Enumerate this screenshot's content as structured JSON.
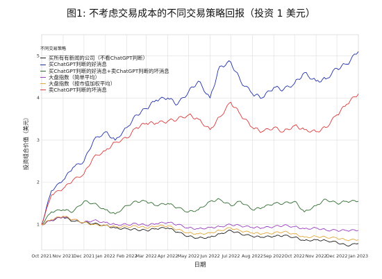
{
  "chart_data": {
    "type": "line",
    "title": "图1:  不考虑交易成本的不同交易策略回报（投资 1 美元）",
    "xlabel": "日期",
    "ylabel": "投资组合价值（美元）",
    "x_ticks": [
      "Oct 2021",
      "Nov 2021",
      "Dec 2021",
      "Jan 2022",
      "Feb 2022",
      "Mar 2022",
      "Apr 2022",
      "May 2022",
      "Jun 2022",
      "Jul 2022",
      "Aug 2022",
      "Sep 2022",
      "Oct 2022",
      "Nov 2022",
      "Dec 2022",
      "Jan 2023"
    ],
    "y_ticks": [
      "1",
      "2",
      "3",
      "4",
      "5"
    ],
    "ylim": [
      0.4,
      5.5
    ],
    "grid": true,
    "legend_title": "不同交易策略",
    "legend_position": "top-left",
    "dates": [
      "2021-10-01",
      "2021-10-15",
      "2021-11-01",
      "2021-11-15",
      "2021-12-01",
      "2021-12-15",
      "2022-01-01",
      "2022-01-15",
      "2022-02-01",
      "2022-02-15",
      "2022-03-01",
      "2022-03-15",
      "2022-04-01",
      "2022-04-15",
      "2022-05-01",
      "2022-05-15",
      "2022-06-01",
      "2022-06-15",
      "2022-07-01",
      "2022-07-15",
      "2022-08-01",
      "2022-08-15",
      "2022-09-01",
      "2022-09-15",
      "2022-10-01",
      "2022-10-15",
      "2022-11-01",
      "2022-11-15",
      "2022-12-01",
      "2022-12-15",
      "2023-01-01"
    ],
    "series": [
      {
        "name": "买所有有新闻的公司（不看ChatGPT判断）",
        "color": "#1a1a1a",
        "values": [
          1.0,
          1.1,
          1.18,
          1.08,
          1.05,
          1.02,
          0.98,
          0.92,
          0.9,
          0.88,
          0.86,
          0.9,
          0.92,
          0.82,
          0.72,
          0.68,
          0.7,
          0.78,
          0.86,
          0.78,
          0.72,
          0.7,
          0.72,
          0.74,
          0.7,
          0.62,
          0.64,
          0.62,
          0.58,
          0.5,
          0.55
        ]
      },
      {
        "name": "买ChatGPT判断的好消息",
        "color": "#1f2fa8",
        "values": [
          1.0,
          1.8,
          2.05,
          2.35,
          2.5,
          3.0,
          3.2,
          3.0,
          3.3,
          3.6,
          3.75,
          3.95,
          4.0,
          3.85,
          4.15,
          4.4,
          4.0,
          4.75,
          4.85,
          4.4,
          4.1,
          4.0,
          4.25,
          4.2,
          4.35,
          4.6,
          4.4,
          4.45,
          4.7,
          4.8,
          5.1
        ]
      },
      {
        "name": "买ChatGPT判断的好消息+卖ChatGPT判断的坏消息",
        "color": "#2e6b2e",
        "values": [
          1.0,
          1.3,
          1.35,
          1.3,
          1.55,
          1.5,
          1.35,
          1.25,
          1.45,
          1.55,
          1.55,
          1.45,
          1.5,
          1.4,
          1.3,
          1.35,
          1.55,
          1.6,
          1.45,
          1.55,
          1.35,
          1.4,
          1.5,
          1.5,
          1.55,
          1.3,
          1.45,
          1.6,
          1.5,
          1.55,
          1.55
        ]
      },
      {
        "name": "大盘指数（简单平均）",
        "color": "#9b3fbf",
        "values": [
          1.0,
          1.1,
          1.18,
          1.12,
          1.05,
          1.1,
          1.05,
          1.0,
          1.0,
          1.02,
          0.98,
          1.02,
          1.05,
          1.0,
          0.92,
          0.9,
          0.93,
          0.95,
          1.0,
          0.97,
          0.93,
          0.92,
          0.95,
          0.98,
          0.95,
          0.9,
          0.92,
          0.87,
          0.86,
          0.86,
          0.86
        ]
      },
      {
        "name": "大盘指数（按市值加权平均）",
        "color": "#e3a83a",
        "values": [
          1.0,
          1.12,
          1.2,
          1.12,
          1.05,
          1.0,
          0.98,
          0.95,
          0.95,
          0.96,
          0.92,
          0.96,
          0.97,
          0.88,
          0.8,
          0.78,
          0.8,
          0.86,
          0.92,
          0.85,
          0.8,
          0.78,
          0.8,
          0.83,
          0.78,
          0.7,
          0.72,
          0.7,
          0.68,
          0.63,
          0.64
        ]
      },
      {
        "name": "卖ChatGPT判断的坏消息",
        "color": "#d93a3a",
        "values": [
          1.0,
          1.7,
          1.85,
          2.05,
          2.2,
          2.6,
          2.75,
          2.95,
          3.05,
          3.3,
          3.4,
          3.4,
          3.45,
          3.5,
          3.6,
          3.5,
          3.25,
          3.55,
          3.9,
          3.6,
          3.3,
          3.2,
          3.3,
          3.2,
          3.35,
          3.25,
          3.2,
          3.3,
          3.6,
          3.85,
          4.1
        ]
      }
    ]
  }
}
